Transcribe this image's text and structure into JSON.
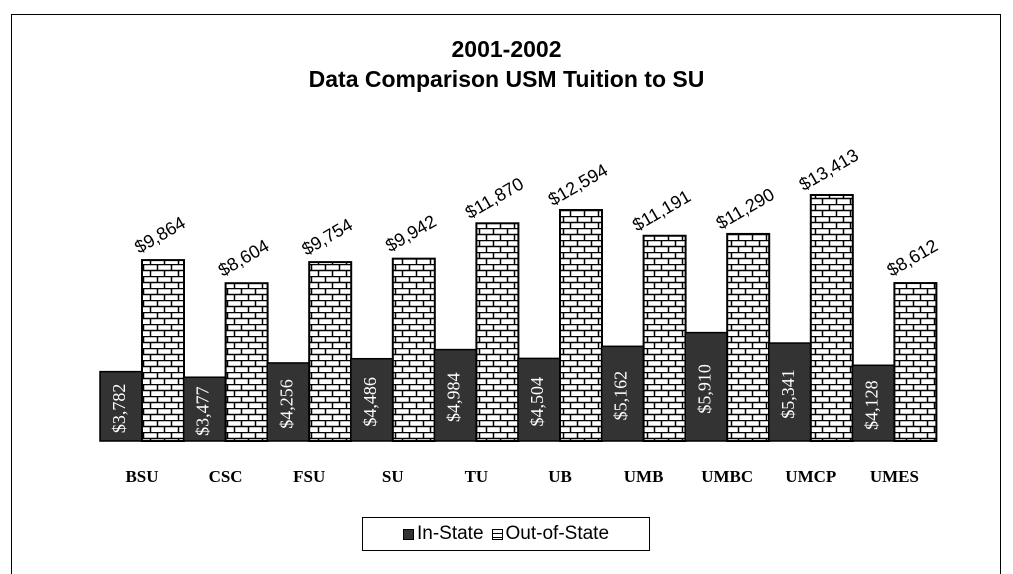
{
  "chart_data": {
    "type": "bar",
    "title": "2001-2002",
    "subtitle": "Data Comparison USM Tuition to SU",
    "categories": [
      "BSU",
      "CSC",
      "FSU",
      "SU",
      "TU",
      "UB",
      "UMB",
      "UMBC",
      "UMCP",
      "UMES"
    ],
    "series": [
      {
        "name": "In-State",
        "values": [
          3782,
          3477,
          4256,
          4486,
          4984,
          4504,
          5162,
          5910,
          5341,
          4128
        ],
        "labels": [
          "$3,782",
          "$3,477",
          "$4,256",
          "$4,486",
          "$4,984",
          "$4,504",
          "$5,162",
          "$5,910",
          "$5,341",
          "$4,128"
        ],
        "fill": "dark-solid"
      },
      {
        "name": "Out-of-State",
        "values": [
          9864,
          8604,
          9754,
          9942,
          11870,
          12594,
          11191,
          11290,
          13413,
          8612
        ],
        "labels": [
          "$9,864",
          "$8,604",
          "$9,754",
          "$9,942",
          "$11,870",
          "$12,594",
          "$11,191",
          "$11,290",
          "$13,413",
          "$8,612"
        ],
        "fill": "brick-pattern"
      }
    ],
    "ylim": [
      0,
      13413
    ],
    "grid": false,
    "legend": "bottom-center",
    "colors": {
      "in_state": "#333333",
      "out_state_bg": "#ffffff",
      "out_state_lines": "#000000"
    }
  }
}
